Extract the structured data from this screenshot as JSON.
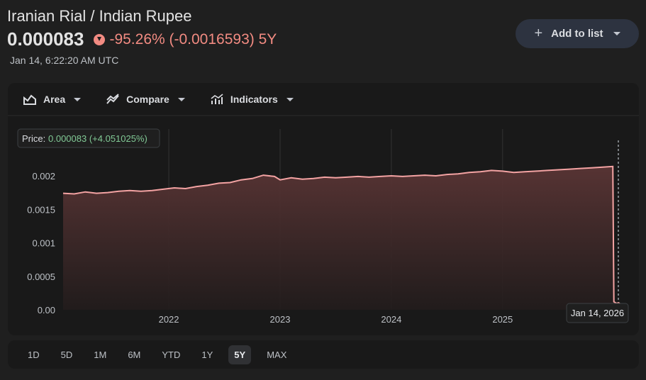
{
  "header": {
    "title": "Iranian Rial / Indian Rupee",
    "price": "0.000083",
    "change": "-95.26% (-0.0016593) 5Y",
    "timestamp": "Jan 14, 6:22:20 AM UTC",
    "add_label": "Add to list"
  },
  "toolbar": {
    "area_label": "Area",
    "compare_label": "Compare",
    "indicators_label": "Indicators"
  },
  "tooltip": {
    "price_label": "Price:",
    "price_value": "0.000083 (+4.051025%)",
    "date_label": "Jan 14, 2026"
  },
  "ranges": [
    "1D",
    "5D",
    "1M",
    "6M",
    "YTD",
    "1Y",
    "5Y",
    "MAX"
  ],
  "active_range": "5Y",
  "colors": {
    "negative": "#f28b82",
    "positive": "#81c995",
    "line": "#f4a3a3"
  },
  "chart_data": {
    "type": "area",
    "xlabel": "",
    "ylabel": "",
    "y_ticks": [
      "0.00",
      "0.0005",
      "0.001",
      "0.0015",
      "0.002"
    ],
    "x_ticks": [
      "2022",
      "2023",
      "2024",
      "2025"
    ],
    "ylim": [
      0,
      0.002
    ],
    "xlim": [
      2021.05,
      2026.04
    ],
    "series": [
      {
        "x": [
          2021.05,
          2021.15,
          2021.25,
          2021.35,
          2021.45,
          2021.55,
          2021.65,
          2021.75,
          2021.85,
          2021.95,
          2022.05,
          2022.15,
          2022.25,
          2022.35,
          2022.45,
          2022.55,
          2022.65,
          2022.75,
          2022.85,
          2022.95,
          2023.0,
          2023.1,
          2023.2,
          2023.3,
          2023.4,
          2023.5,
          2023.6,
          2023.7,
          2023.8,
          2023.9,
          2024.0,
          2024.1,
          2024.2,
          2024.3,
          2024.4,
          2024.5,
          2024.6,
          2024.7,
          2024.8,
          2024.9,
          2025.0,
          2025.1,
          2025.2,
          2025.3,
          2025.4,
          2025.5,
          2025.6,
          2025.7,
          2025.8,
          2025.9,
          2025.99,
          2026.0,
          2026.04
        ],
        "values": [
          0.00174,
          0.00173,
          0.00176,
          0.00174,
          0.00175,
          0.00177,
          0.00178,
          0.00177,
          0.00178,
          0.0018,
          0.00182,
          0.00181,
          0.00184,
          0.00186,
          0.00189,
          0.0019,
          0.00194,
          0.00196,
          0.00201,
          0.00199,
          0.00194,
          0.00197,
          0.00195,
          0.00196,
          0.00198,
          0.00197,
          0.00198,
          0.00199,
          0.00198,
          0.00199,
          0.002,
          0.00199,
          0.002,
          0.00201,
          0.002,
          0.00202,
          0.00203,
          0.00205,
          0.00206,
          0.00208,
          0.00207,
          0.00205,
          0.00206,
          0.00207,
          0.00208,
          0.00209,
          0.0021,
          0.00211,
          0.00212,
          0.00213,
          0.00214,
          0.00012,
          8.3e-05
        ]
      }
    ]
  }
}
